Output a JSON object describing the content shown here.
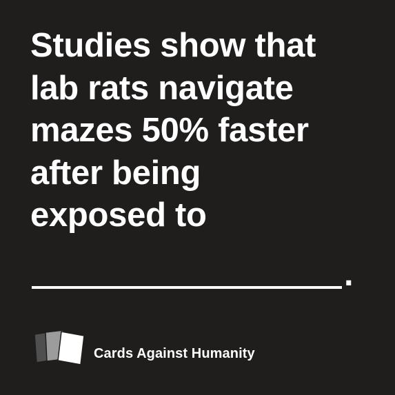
{
  "card": {
    "prompt_lines": [
      "Studies show that",
      "lab rats navigate",
      "mazes 50% faster",
      "after being",
      "exposed to"
    ],
    "blank_suffix": ".",
    "brand_name": "Cards Against Humanity",
    "logo_icon": "cards-logo-icon",
    "colors": {
      "background": "#1f1e1d",
      "text": "#ffffff",
      "logo_back": "#4f4f4f",
      "logo_middle": "#9c9c9c",
      "logo_front": "#ffffff"
    }
  }
}
